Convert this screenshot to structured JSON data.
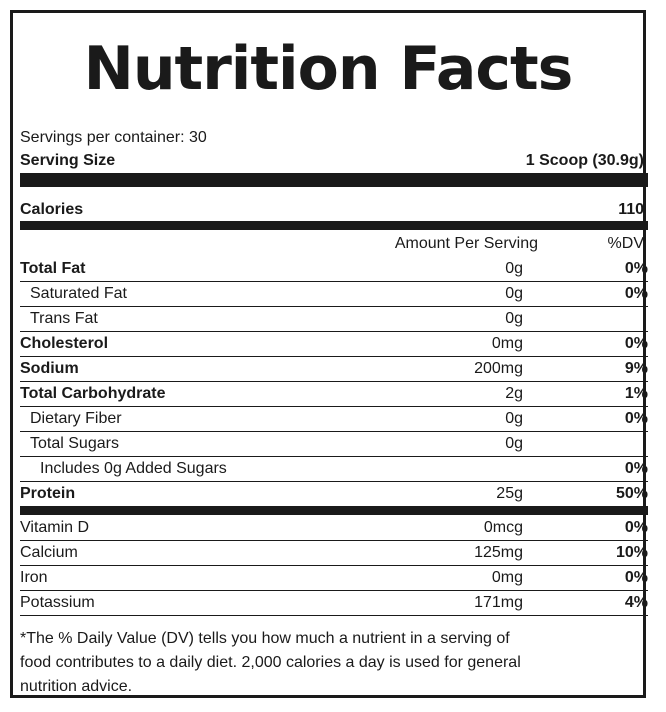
{
  "title": "Nutrition Facts",
  "servings_per_container": "Servings per container: 30",
  "serving_size": {
    "label": "Serving Size",
    "value": "1 Scoop (30.9g)"
  },
  "calories": {
    "label": "Calories",
    "value": "110"
  },
  "header": {
    "amount": "Amount Per Serving",
    "dv": "%DV"
  },
  "nutrients": [
    {
      "name": "Total Fat",
      "amount": "0g",
      "dv": "0%"
    },
    {
      "name": "Saturated Fat",
      "amount": "0g",
      "dv": "0%"
    },
    {
      "name": "Trans Fat",
      "amount": "0g",
      "dv": ""
    },
    {
      "name": "Cholesterol",
      "amount": "0mg",
      "dv": "0%"
    },
    {
      "name": "Sodium",
      "amount": "200mg",
      "dv": "9%"
    },
    {
      "name": "Total Carbohydrate",
      "amount": "2g",
      "dv": "1%"
    },
    {
      "name": "Dietary Fiber",
      "amount": "0g",
      "dv": "0%"
    },
    {
      "name": "Total Sugars",
      "amount": "0g",
      "dv": ""
    },
    {
      "name": "Includes 0g Added Sugars",
      "amount": "",
      "dv": "0%"
    },
    {
      "name": "Protein",
      "amount": "25g",
      "dv": "50%"
    }
  ],
  "vitamins": [
    {
      "name": "Vitamin D",
      "amount": "0mcg",
      "dv": "0%"
    },
    {
      "name": "Calcium",
      "amount": "125mg",
      "dv": "10%"
    },
    {
      "name": "Iron",
      "amount": "0mg",
      "dv": "0%"
    },
    {
      "name": "Potassium",
      "amount": "171mg",
      "dv": "4%"
    }
  ],
  "footnote": "*The % Daily Value (DV) tells you how much a nutrient in a serving of food contributes to a daily diet. 2,000 calories a day is used for general nutrition advice."
}
